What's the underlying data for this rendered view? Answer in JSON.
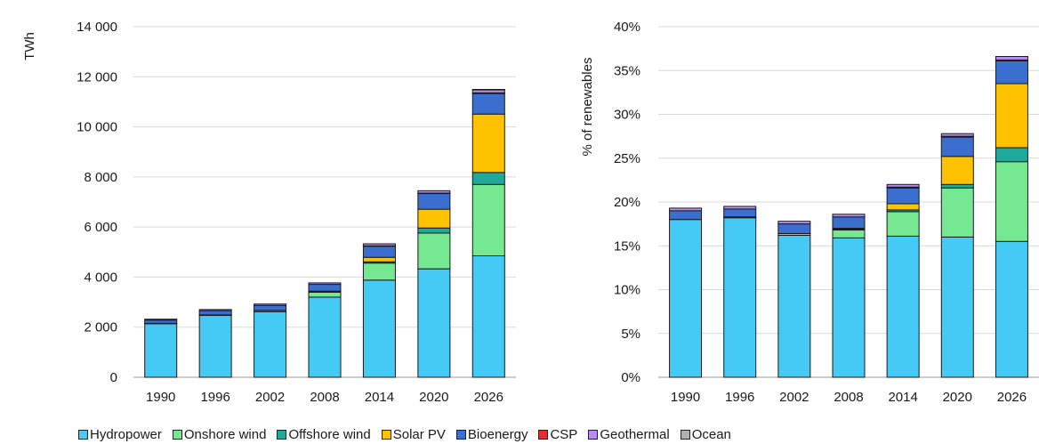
{
  "chart_data": [
    {
      "type": "bar",
      "stacked": true,
      "categories": [
        "1990",
        "1996",
        "2002",
        "2008",
        "2014",
        "2020",
        "2026"
      ],
      "ylabel": "TWh",
      "ylim": [
        0,
        14000
      ],
      "yticks": [
        0,
        2000,
        4000,
        6000,
        8000,
        10000,
        12000,
        14000
      ],
      "ytick_labels": [
        "0",
        "2 000",
        "4 000",
        "6 000",
        "8 000",
        "10 000",
        "12 000",
        "14 000"
      ],
      "grid": true,
      "series": [
        {
          "name": "Hydropower",
          "values": [
            2150,
            2480,
            2620,
            3200,
            3880,
            4330,
            4850
          ]
        },
        {
          "name": "Onshore wind",
          "values": [
            5,
            10,
            50,
            200,
            680,
            1430,
            2850
          ]
        },
        {
          "name": "Offshore wind",
          "values": [
            0,
            0,
            0,
            20,
            50,
            200,
            480
          ]
        },
        {
          "name": "Solar PV",
          "values": [
            0,
            0,
            0,
            20,
            180,
            750,
            2330
          ]
        },
        {
          "name": "Bioenergy",
          "values": [
            130,
            170,
            200,
            270,
            450,
            630,
            820
          ]
        },
        {
          "name": "CSP",
          "values": [
            0,
            0,
            0,
            0,
            10,
            15,
            30
          ]
        },
        {
          "name": "Geothermal",
          "values": [
            35,
            45,
            55,
            60,
            80,
            95,
            130
          ]
        },
        {
          "name": "Ocean",
          "values": [
            0,
            0,
            0,
            0,
            0,
            0,
            5
          ]
        }
      ]
    },
    {
      "type": "bar",
      "stacked": true,
      "categories": [
        "1990",
        "1996",
        "2002",
        "2008",
        "2014",
        "2020",
        "2026"
      ],
      "ylabel": "% of renewables",
      "ylim": [
        0,
        40
      ],
      "yticks": [
        0,
        5,
        10,
        15,
        20,
        25,
        30,
        35,
        40
      ],
      "ytick_labels": [
        "0%",
        "5%",
        "10%",
        "15%",
        "20%",
        "25%",
        "30%",
        "35%",
        "40%"
      ],
      "grid": true,
      "series": [
        {
          "name": "Hydropower",
          "values": [
            18.0,
            18.2,
            16.2,
            15.9,
            16.1,
            16.0,
            15.5
          ]
        },
        {
          "name": "Onshore wind",
          "values": [
            0.0,
            0.1,
            0.2,
            0.9,
            2.8,
            5.6,
            9.1
          ]
        },
        {
          "name": "Offshore wind",
          "values": [
            0.0,
            0.0,
            0.0,
            0.1,
            0.2,
            0.4,
            1.6
          ]
        },
        {
          "name": "Solar PV",
          "values": [
            0.0,
            0.0,
            0.0,
            0.1,
            0.7,
            3.2,
            7.3
          ]
        },
        {
          "name": "Bioenergy",
          "values": [
            1.0,
            0.9,
            1.1,
            1.3,
            1.8,
            2.2,
            2.6
          ]
        },
        {
          "name": "CSP",
          "values": [
            0.0,
            0.0,
            0.0,
            0.0,
            0.1,
            0.1,
            0.1
          ]
        },
        {
          "name": "Geothermal",
          "values": [
            0.3,
            0.3,
            0.3,
            0.3,
            0.3,
            0.3,
            0.4
          ]
        },
        {
          "name": "Ocean",
          "values": [
            0.0,
            0.0,
            0.0,
            0.0,
            0.0,
            0.0,
            0.0
          ]
        }
      ]
    }
  ],
  "legend": {
    "placement": "bottom",
    "items": [
      {
        "label": "Hydropower",
        "color": "#45c9f5"
      },
      {
        "label": "Onshore wind",
        "color": "#75e891"
      },
      {
        "label": "Offshore wind",
        "color": "#20a89a"
      },
      {
        "label": "Solar PV",
        "color": "#ffc200"
      },
      {
        "label": "Bioenergy",
        "color": "#3a6fd0"
      },
      {
        "label": "CSP",
        "color": "#e03030"
      },
      {
        "label": "Geothermal",
        "color": "#b58ef0"
      },
      {
        "label": "Ocean",
        "color": "#b0b0b0"
      }
    ]
  }
}
